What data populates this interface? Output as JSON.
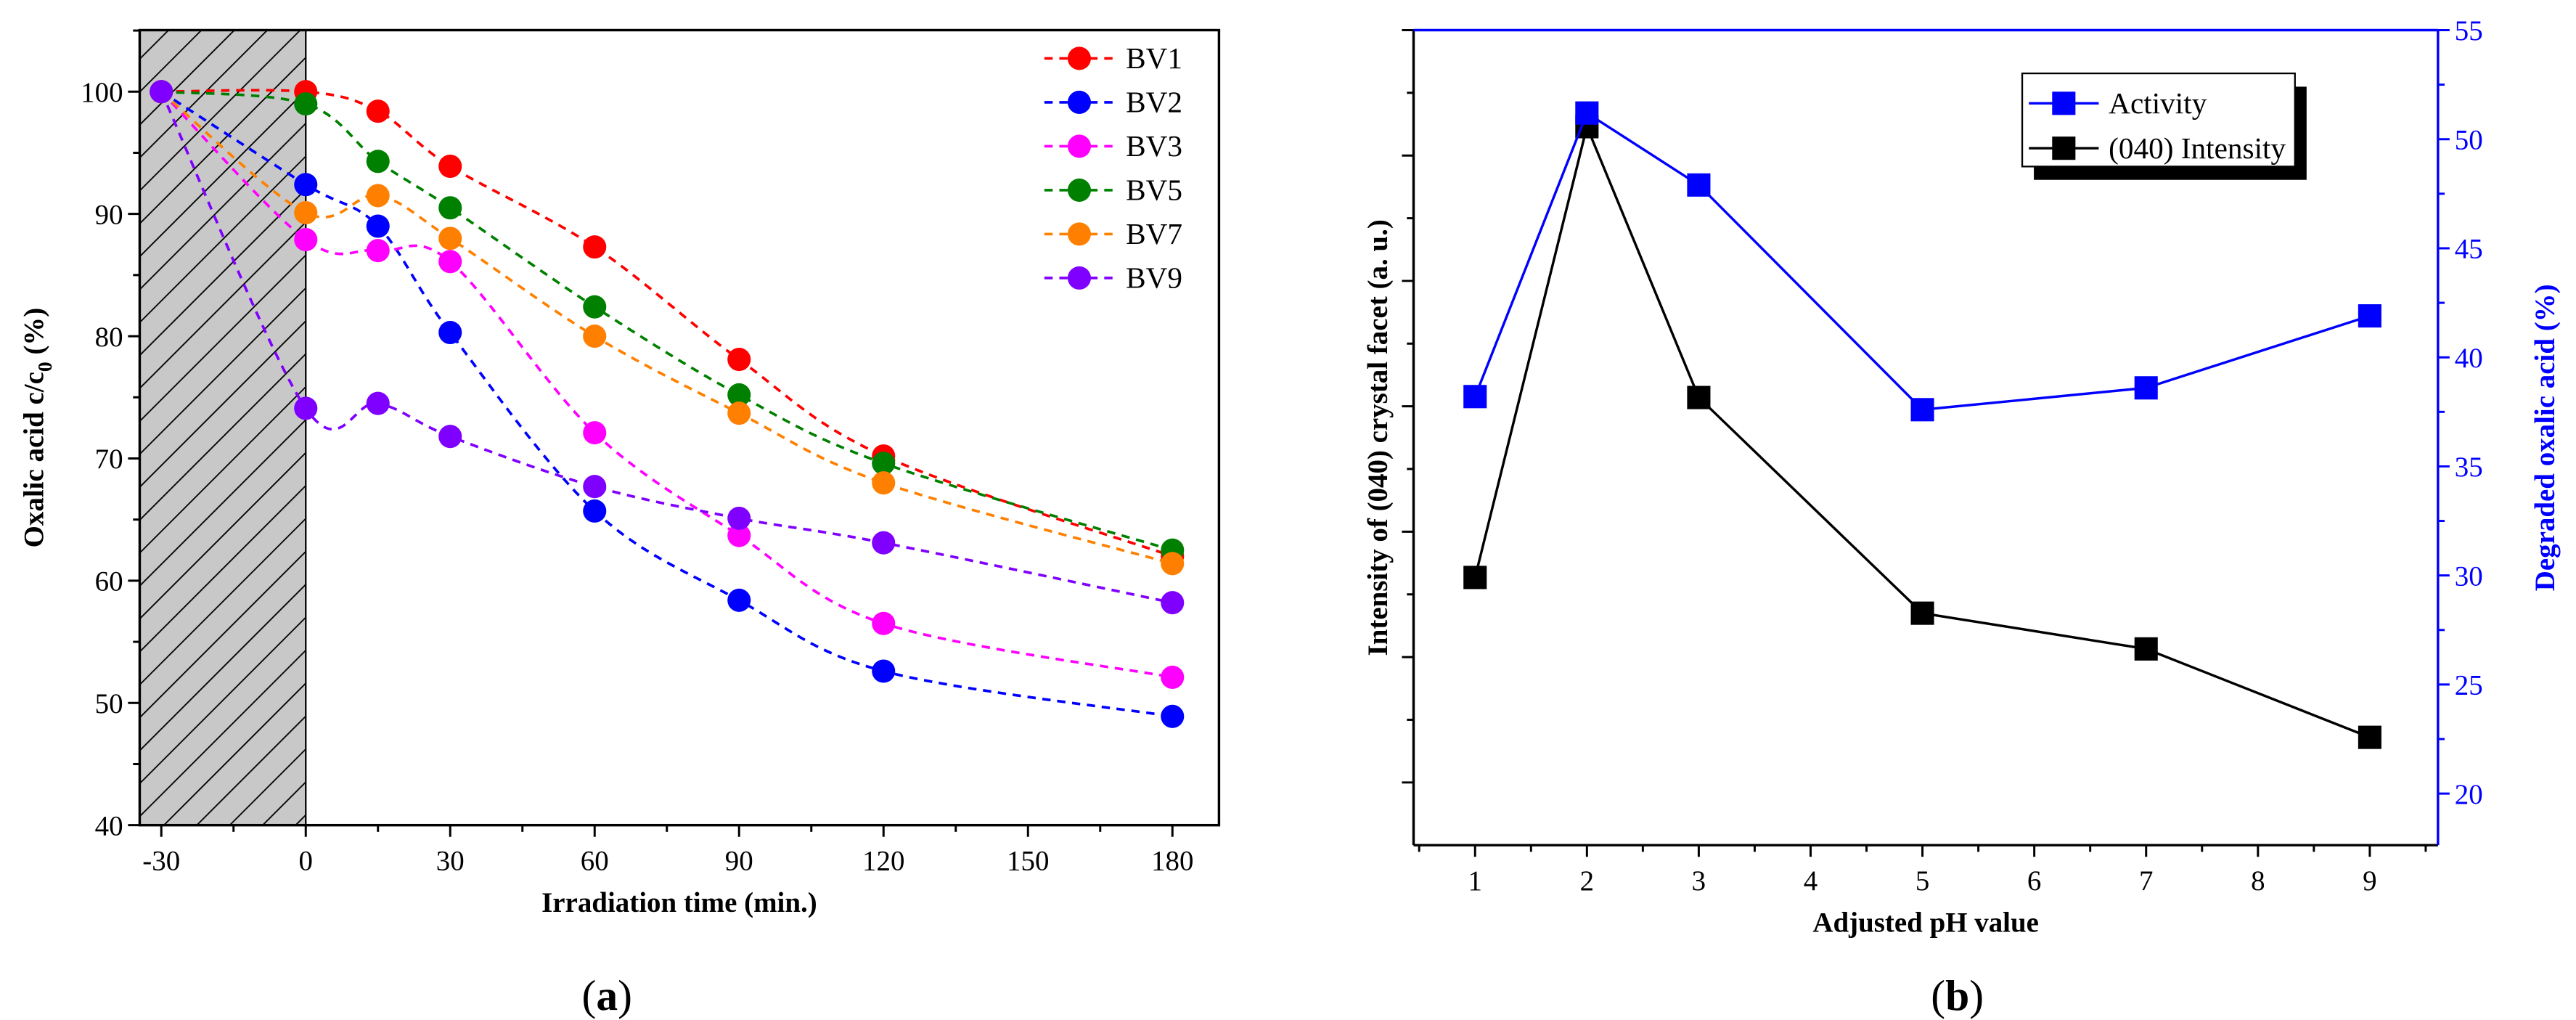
{
  "chart_data": [
    {
      "type": "line",
      "panel_label": {
        "open": "(",
        "letter": "a",
        "close": ")"
      },
      "xlabel": "Irradiation time (min.)",
      "ylabel": {
        "main": "Oxalic acid c/c",
        "sub": "0",
        "suffix": " (%)"
      },
      "xlim": [
        -30,
        180
      ],
      "ylim": [
        40,
        105
      ],
      "xticks": [
        -30,
        0,
        30,
        60,
        90,
        120,
        150,
        180
      ],
      "yticks": [
        40,
        50,
        60,
        70,
        80,
        90,
        100
      ],
      "dark_period_shaded": [
        -30,
        0
      ],
      "legend_position": "top-right",
      "x": [
        -30,
        0,
        15,
        30,
        60,
        90,
        120,
        180
      ],
      "series": [
        {
          "name": "BV1",
          "color": "#ff0000",
          "values": [
            100,
            100,
            98.4,
            93.9,
            87.3,
            78.1,
            70.2,
            62.0
          ]
        },
        {
          "name": "BV2",
          "color": "#0000ff",
          "values": [
            100,
            92.4,
            89.0,
            80.3,
            65.7,
            58.4,
            52.6,
            48.9
          ]
        },
        {
          "name": "BV3",
          "color": "#ff00ff",
          "values": [
            100,
            87.9,
            87.0,
            86.1,
            72.1,
            63.7,
            56.5,
            52.1
          ]
        },
        {
          "name": "BV5",
          "color": "#008000",
          "values": [
            100,
            99.0,
            94.3,
            90.5,
            82.4,
            75.2,
            69.6,
            62.5
          ]
        },
        {
          "name": "BV7",
          "color": "#ff8000",
          "values": [
            100,
            90.1,
            91.5,
            88.0,
            80.0,
            73.7,
            68.0,
            61.4
          ]
        },
        {
          "name": "BV9",
          "color": "#8000ff",
          "values": [
            100,
            74.1,
            74.5,
            71.8,
            67.7,
            65.1,
            63.1,
            58.2
          ]
        }
      ]
    },
    {
      "type": "line",
      "panel_label": {
        "open": "(",
        "letter": "b",
        "close": ")"
      },
      "xlabel": "Adjusted pH value",
      "ylabel_left": "Intensity of (040) crystal facet (a. u.)",
      "ylabel_right": "Degraded oxalic acid (%)",
      "xlim": [
        0.5,
        9.5
      ],
      "xticks": [
        1,
        2,
        3,
        4,
        5,
        6,
        7,
        8,
        9
      ],
      "ylim_right": [
        17.6,
        55
      ],
      "yticks_right": [
        20,
        25,
        30,
        35,
        40,
        45,
        50,
        55
      ],
      "ylim_left": [
        0,
        13
      ],
      "legend_position": "top-right",
      "x": [
        1,
        2,
        3,
        5,
        7,
        9
      ],
      "series": [
        {
          "name": "Activity",
          "axis": "right",
          "color": "#0000ff",
          "values": [
            38.2,
            51.2,
            47.9,
            37.6,
            38.6,
            41.9
          ]
        },
        {
          "name": "(040) Intensity",
          "axis": "left",
          "color": "#000000",
          "values": [
            4.27,
            11.46,
            7.14,
            3.7,
            3.13,
            1.72
          ]
        }
      ]
    }
  ]
}
